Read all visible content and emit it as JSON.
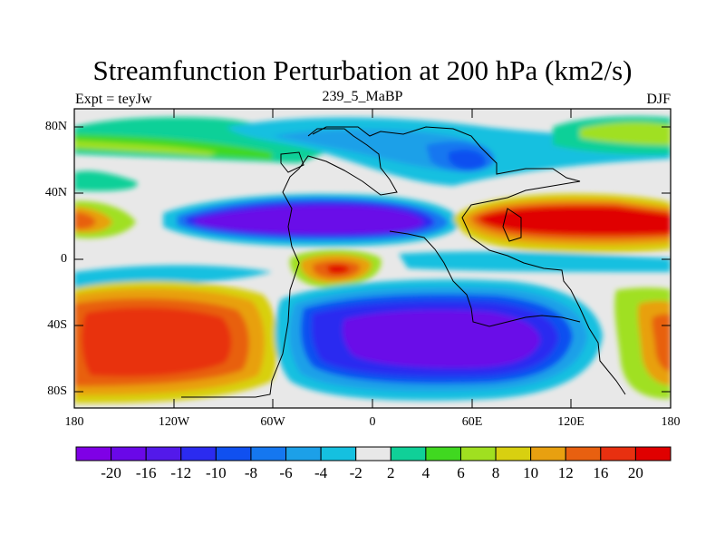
{
  "title": "Streamfunction Perturbation at 200 hPa (km2/s)",
  "subtitle_left": "Expt = teyJw",
  "subtitle_center": "239_5_MaBP",
  "subtitle_right": "DJF",
  "lat_labels": [
    "80N",
    "40N",
    "0",
    "40S",
    "80S"
  ],
  "lon_labels": [
    "180",
    "120W",
    "60W",
    "0",
    "60E",
    "120E",
    "180"
  ],
  "colorbar": {
    "colors": [
      "#7f00e6",
      "#6a08e8",
      "#5319ea",
      "#2b2bf0",
      "#1050f0",
      "#1577f0",
      "#1ca0e8",
      "#15c0e0",
      "#e8e8e8",
      "#10d098",
      "#40d820",
      "#a0e020",
      "#d8d010",
      "#e8a010",
      "#e86010",
      "#e83010",
      "#e00000"
    ],
    "labels": [
      "-20",
      "-16",
      "-12",
      "-10",
      "-8",
      "-6",
      "-4",
      "-2",
      "2",
      "4",
      "6",
      "8",
      "10",
      "12",
      "16",
      "20"
    ]
  }
}
